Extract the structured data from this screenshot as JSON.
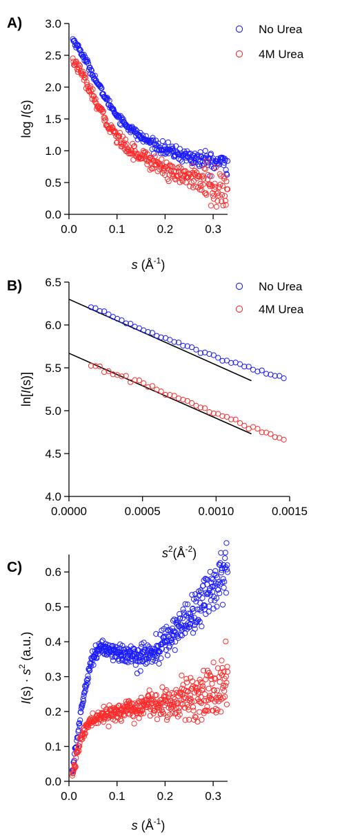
{
  "chart_data": [
    {
      "panel": "A)",
      "type": "scatter",
      "xlabel": {
        "var": "s",
        "rest": " (Å",
        "sup": "-1",
        "close": ")"
      },
      "ylabel": {
        "pre": "log ",
        "var": "I",
        "rest": "(s)"
      },
      "xlim": [
        0,
        0.33
      ],
      "ylim": [
        0,
        3.0
      ],
      "xticks": [
        "0.0",
        "0.1",
        "0.2",
        "0.3"
      ],
      "xtick_values": [
        0,
        0.1,
        0.2,
        0.3
      ],
      "yticks": [
        "0.0",
        "0.5",
        "1.0",
        "1.5",
        "2.0",
        "2.5",
        "3.0"
      ],
      "ytick_values": [
        0,
        0.5,
        1.0,
        1.5,
        2.0,
        2.5,
        3.0
      ],
      "legend_position": "top-right",
      "series": [
        {
          "name": "No Urea",
          "color": "#1a1aff",
          "marker": "open-circle",
          "x_range": [
            0.008,
            0.33
          ],
          "count": 280,
          "noise": 0.025,
          "noise_growth": 2.5,
          "curve_x": [
            0.008,
            0.02,
            0.04,
            0.06,
            0.08,
            0.1,
            0.12,
            0.15,
            0.18,
            0.2,
            0.22,
            0.25,
            0.28,
            0.3,
            0.33
          ],
          "curve_y": [
            2.75,
            2.62,
            2.35,
            2.05,
            1.78,
            1.56,
            1.4,
            1.21,
            1.09,
            1.02,
            0.97,
            0.9,
            0.85,
            0.82,
            0.8
          ]
        },
        {
          "name": "4M Urea",
          "color": "#ff2a2a",
          "marker": "open-circle",
          "x_range": [
            0.008,
            0.33
          ],
          "count": 280,
          "noise": 0.04,
          "noise_growth": 3,
          "curve_x": [
            0.008,
            0.02,
            0.04,
            0.06,
            0.08,
            0.1,
            0.12,
            0.15,
            0.18,
            0.2,
            0.22,
            0.25,
            0.28,
            0.3,
            0.33
          ],
          "curve_y": [
            2.42,
            2.3,
            2.0,
            1.7,
            1.43,
            1.22,
            1.06,
            0.92,
            0.8,
            0.73,
            0.66,
            0.58,
            0.5,
            0.44,
            0.38
          ]
        }
      ]
    },
    {
      "panel": "B)",
      "type": "scatter",
      "xlabel": {
        "var": "s",
        "sup1": "2",
        "rest": "(Å",
        "sup": "-2",
        "close": ")"
      },
      "ylabel": {
        "pre": "ln[",
        "var": "I",
        "rest": "(s)]"
      },
      "xlim": [
        0,
        0.0015
      ],
      "ylim": [
        4.0,
        6.5
      ],
      "xticks": [
        "0.0000",
        "0.0005",
        "0.0010",
        "0.0015"
      ],
      "xtick_values": [
        0,
        0.0005,
        0.001,
        0.0015
      ],
      "yticks": [
        "4.0",
        "4.5",
        "5.0",
        "5.5",
        "6.0",
        "6.5"
      ],
      "ytick_values": [
        4.0,
        4.5,
        5.0,
        5.5,
        6.0,
        6.5
      ],
      "legend_position": "top-right",
      "series": [
        {
          "name": "No Urea",
          "color": "#1a1aff",
          "marker": "open-circle",
          "x_range": [
            0.00015,
            0.00146
          ],
          "count": 45,
          "noise": 0.01,
          "noise_growth": 0,
          "curve_x": [
            0.00015,
            0.0005,
            0.001,
            0.00146
          ],
          "curve_y": [
            6.2,
            5.95,
            5.62,
            5.38
          ]
        },
        {
          "name": "4M Urea",
          "color": "#ff2a2a",
          "marker": "open-circle",
          "x_range": [
            0.00015,
            0.00146
          ],
          "count": 45,
          "noise": 0.015,
          "noise_growth": 0,
          "curve_x": [
            0.00015,
            0.0005,
            0.001,
            0.00146
          ],
          "curve_y": [
            5.52,
            5.32,
            4.96,
            4.66
          ]
        }
      ],
      "fit_lines": [
        {
          "name": "No Urea fit",
          "x": [
            0,
            0.00124
          ],
          "y": [
            6.3,
            5.35
          ],
          "color": "#000000"
        },
        {
          "name": "4M Urea fit",
          "x": [
            0,
            0.00124
          ],
          "y": [
            5.67,
            4.73
          ],
          "color": "#000000"
        }
      ]
    },
    {
      "panel": "C)",
      "type": "scatter",
      "xlabel": {
        "var": "s",
        "rest": " (Å",
        "sup": "-1",
        "close": ")"
      },
      "ylabel": {
        "var": "I",
        "rest": "(s) · ",
        "var2": "s",
        "sup": "2",
        "close": " (a.u.)"
      },
      "xlim": [
        0,
        0.33
      ],
      "ylim": [
        0,
        0.65
      ],
      "xticks": [
        "0.0",
        "0.1",
        "0.2",
        "0.3"
      ],
      "xtick_values": [
        0,
        0.1,
        0.2,
        0.3
      ],
      "yticks": [
        "0.0",
        "0.1",
        "0.2",
        "0.3",
        "0.4",
        "0.5",
        "0.6"
      ],
      "ytick_values": [
        0,
        0.1,
        0.2,
        0.3,
        0.4,
        0.5,
        0.6
      ],
      "legend_position": "none",
      "series": [
        {
          "name": "No Urea",
          "color": "#1a1aff",
          "marker": "open-circle",
          "x_range": [
            0.007,
            0.33
          ],
          "count": 420,
          "noise": 0.009,
          "noise_growth": 4,
          "curve_x": [
            0.007,
            0.015,
            0.025,
            0.035,
            0.045,
            0.055,
            0.065,
            0.08,
            0.1,
            0.12,
            0.15,
            0.18,
            0.2,
            0.22,
            0.25,
            0.28,
            0.3,
            0.33
          ],
          "curve_y": [
            0.03,
            0.1,
            0.2,
            0.28,
            0.34,
            0.37,
            0.38,
            0.38,
            0.37,
            0.36,
            0.36,
            0.37,
            0.4,
            0.43,
            0.47,
            0.52,
            0.56,
            0.6
          ]
        },
        {
          "name": "4M Urea",
          "color": "#ff2a2a",
          "marker": "open-circle",
          "x_range": [
            0.007,
            0.33
          ],
          "count": 420,
          "noise": 0.008,
          "noise_growth": 5,
          "curve_x": [
            0.007,
            0.015,
            0.025,
            0.035,
            0.045,
            0.055,
            0.07,
            0.09,
            0.11,
            0.14,
            0.17,
            0.2,
            0.23,
            0.26,
            0.29,
            0.33
          ],
          "curve_y": [
            0.02,
            0.07,
            0.12,
            0.15,
            0.17,
            0.18,
            0.19,
            0.195,
            0.2,
            0.21,
            0.22,
            0.225,
            0.235,
            0.245,
            0.255,
            0.27
          ]
        }
      ]
    }
  ]
}
